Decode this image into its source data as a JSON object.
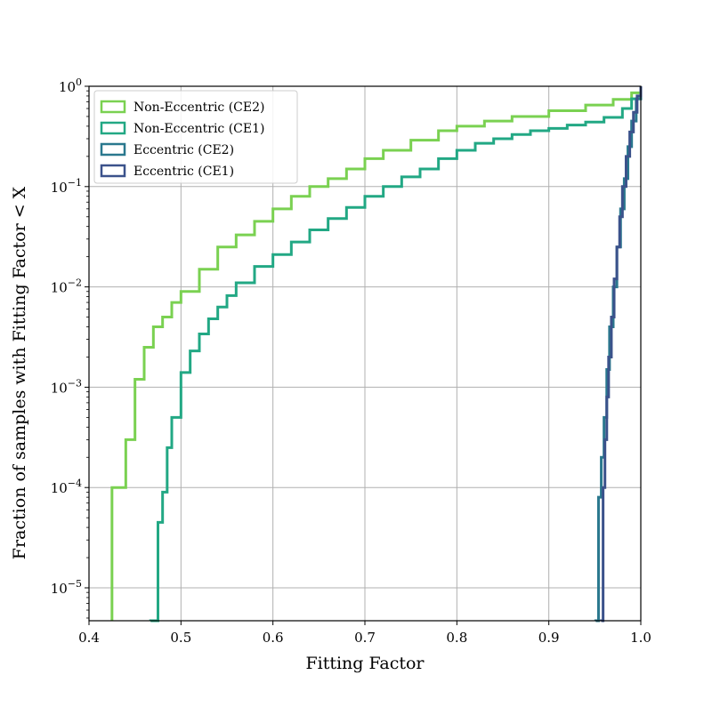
{
  "chart_data": {
    "type": "line",
    "subtype": "step cumulative histogram",
    "xlabel": "Fitting Factor",
    "ylabel": "Fraction of samples with Fitting Factor < X",
    "xlim": [
      0.4,
      1.0
    ],
    "ylim": [
      4.7e-06,
      1.0
    ],
    "yscale": "log",
    "grid": true,
    "legend_position": "top-left",
    "x_ticks": [
      0.4,
      0.5,
      0.6,
      0.7,
      0.8,
      0.9,
      1.0
    ],
    "x_tick_labels": [
      "0.4",
      "0.5",
      "0.6",
      "0.7",
      "0.8",
      "0.9",
      "1.0"
    ],
    "y_ticks": [
      {
        "value": 1.0,
        "base": "10",
        "exp": "0"
      },
      {
        "value": 0.1,
        "base": "10",
        "exp": "−1"
      },
      {
        "value": 0.01,
        "base": "10",
        "exp": "−2"
      },
      {
        "value": 0.001,
        "base": "10",
        "exp": "−3"
      },
      {
        "value": 0.0001,
        "base": "10",
        "exp": "−4"
      },
      {
        "value": 1e-05,
        "base": "10",
        "exp": "−5"
      }
    ],
    "series": [
      {
        "name": "Non-Eccentric (CE2)",
        "color": "#7ad151",
        "x": [
          0.425,
          0.44,
          0.45,
          0.46,
          0.47,
          0.48,
          0.49,
          0.5,
          0.52,
          0.54,
          0.56,
          0.58,
          0.6,
          0.62,
          0.64,
          0.66,
          0.68,
          0.7,
          0.72,
          0.75,
          0.78,
          0.8,
          0.83,
          0.86,
          0.9,
          0.94,
          0.97,
          0.99,
          1.0
        ],
        "y": [
          0.0001,
          0.0003,
          0.0012,
          0.0025,
          0.004,
          0.005,
          0.007,
          0.009,
          0.015,
          0.025,
          0.033,
          0.045,
          0.06,
          0.08,
          0.1,
          0.12,
          0.15,
          0.19,
          0.23,
          0.29,
          0.36,
          0.4,
          0.45,
          0.5,
          0.57,
          0.65,
          0.74,
          0.86,
          1.0
        ]
      },
      {
        "name": "Non-Eccentric (CE1)",
        "color": "#22a884",
        "x": [
          0.467,
          0.475,
          0.48,
          0.485,
          0.49,
          0.5,
          0.51,
          0.52,
          0.53,
          0.54,
          0.55,
          0.56,
          0.58,
          0.6,
          0.62,
          0.64,
          0.66,
          0.68,
          0.7,
          0.72,
          0.74,
          0.76,
          0.78,
          0.8,
          0.82,
          0.84,
          0.86,
          0.88,
          0.9,
          0.92,
          0.94,
          0.96,
          0.98,
          0.99,
          1.0
        ],
        "y": [
          4.7e-06,
          4.5e-05,
          9e-05,
          0.00025,
          0.0005,
          0.0014,
          0.0023,
          0.0034,
          0.0048,
          0.0063,
          0.0082,
          0.011,
          0.016,
          0.021,
          0.028,
          0.037,
          0.048,
          0.062,
          0.08,
          0.1,
          0.125,
          0.15,
          0.19,
          0.23,
          0.27,
          0.3,
          0.33,
          0.36,
          0.38,
          0.41,
          0.44,
          0.49,
          0.6,
          0.75,
          1.0
        ]
      },
      {
        "name": "Eccentric (CE2)",
        "color": "#2a788e",
        "x": [
          0.951,
          0.954,
          0.957,
          0.96,
          0.963,
          0.966,
          0.97,
          0.974,
          0.978,
          0.982,
          0.986,
          0.99,
          0.995,
          1.0
        ],
        "y": [
          4.7e-06,
          8e-05,
          0.0002,
          0.0005,
          0.0015,
          0.004,
          0.01,
          0.025,
          0.06,
          0.12,
          0.25,
          0.45,
          0.75,
          1.0
        ]
      },
      {
        "name": "Eccentric (CE1)",
        "color": "#3b528b",
        "x": [
          0.957,
          0.959,
          0.961,
          0.963,
          0.965,
          0.968,
          0.971,
          0.974,
          0.977,
          0.98,
          0.984,
          0.988,
          0.992,
          0.996,
          1.0
        ],
        "y": [
          4.7e-06,
          0.0001,
          0.0003,
          0.0008,
          0.002,
          0.005,
          0.012,
          0.025,
          0.05,
          0.1,
          0.2,
          0.35,
          0.55,
          0.8,
          1.0
        ]
      }
    ]
  }
}
